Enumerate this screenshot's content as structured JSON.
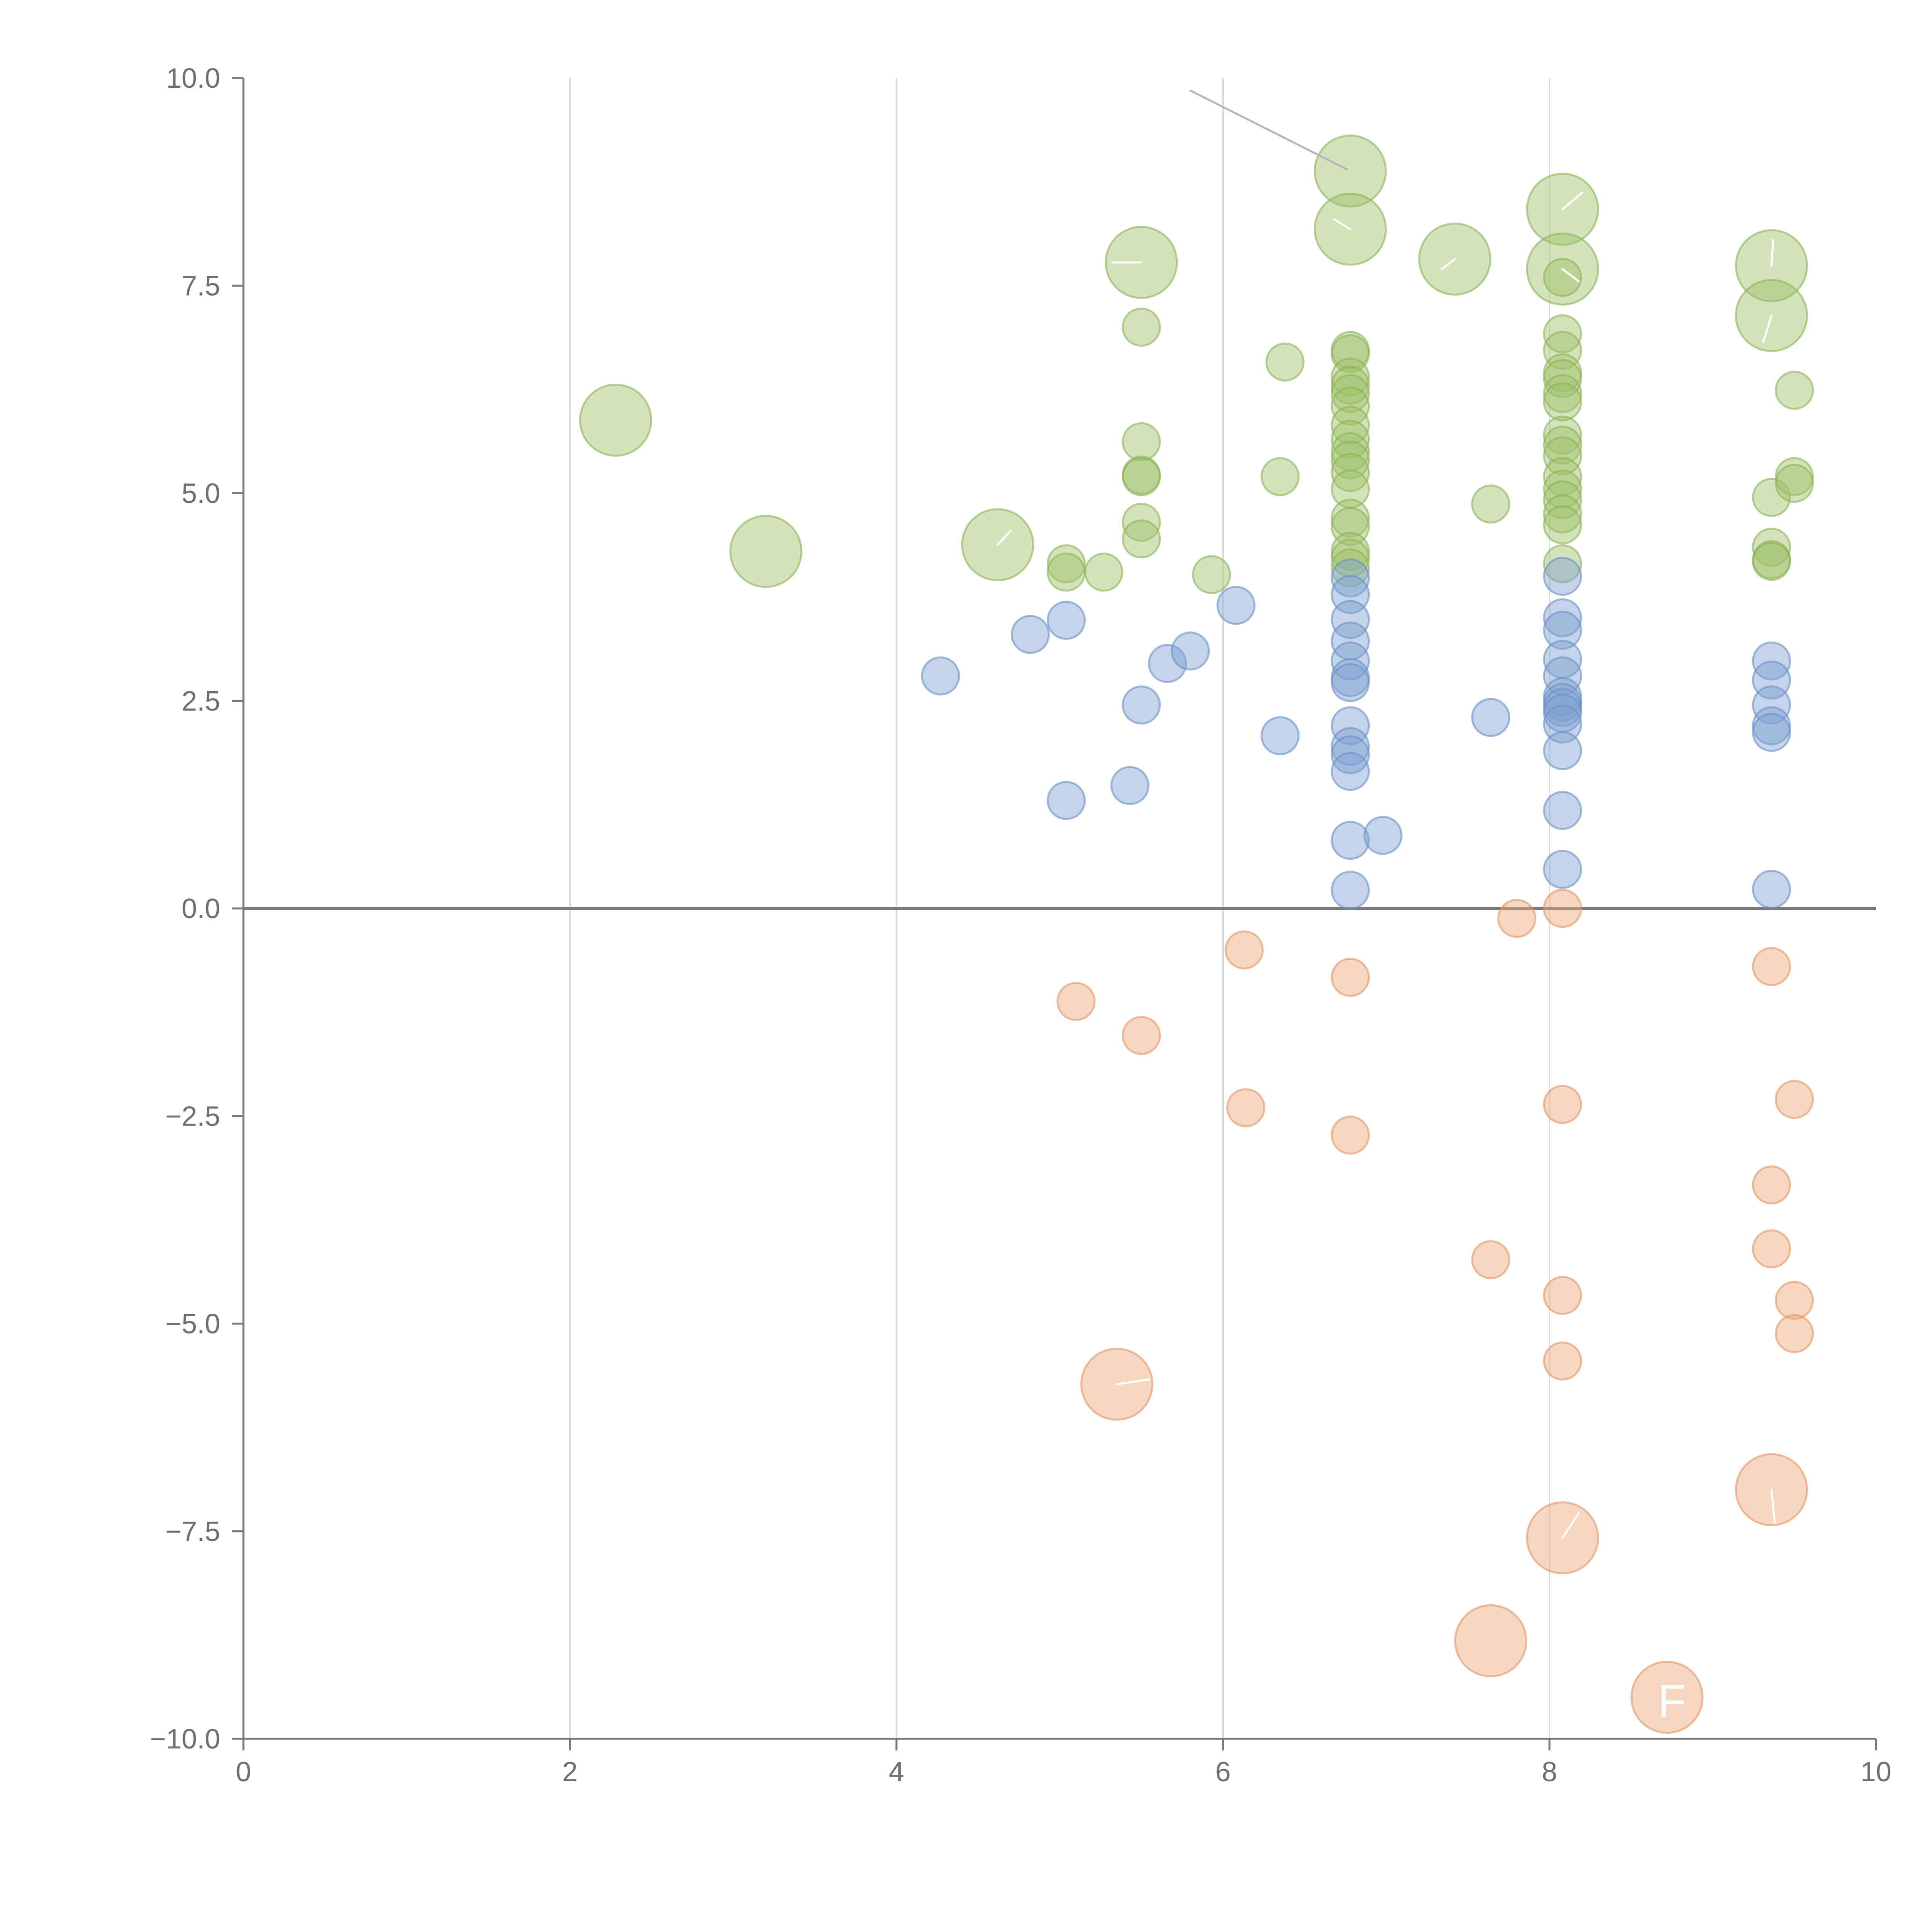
{
  "chart_data": {
    "type": "scatter",
    "title": "",
    "xlabel": "",
    "ylabel": "",
    "xlim": [
      0,
      10
    ],
    "ylim": [
      -10,
      10
    ],
    "x_ticks": [
      0,
      2,
      4,
      6,
      8,
      10
    ],
    "x_tick_labels": [
      "0",
      "2",
      "4",
      "6",
      "8",
      "10"
    ],
    "y_ticks": [
      10,
      7.5,
      5,
      2.5,
      0,
      -2.5,
      -5,
      -7.5,
      -10
    ],
    "y_tick_labels": [
      "10.0",
      "7.5",
      "5.0",
      "2.5",
      "0.0",
      "−2.5",
      "−5.0",
      "−7.5",
      "−10.0"
    ],
    "vertical_gridlines": [
      2,
      4,
      6,
      8
    ],
    "zero_line": 0,
    "series": [
      {
        "name": "green",
        "color": "#9dc068",
        "stroke": "#8bb355",
        "points": [
          [
            2.28,
            5.88,
            2
          ],
          [
            3.2,
            4.3,
            2
          ],
          [
            4.62,
            4.38,
            2
          ],
          [
            5.04,
            4.15,
            1
          ],
          [
            5.04,
            4.05,
            1
          ],
          [
            5.27,
            4.05,
            1
          ],
          [
            5.5,
            7.78,
            2
          ],
          [
            5.5,
            7.0,
            1
          ],
          [
            5.5,
            5.62,
            1
          ],
          [
            5.5,
            5.22,
            1
          ],
          [
            5.5,
            5.2,
            1
          ],
          [
            5.5,
            4.65,
            1
          ],
          [
            5.5,
            4.45,
            1
          ],
          [
            5.93,
            4.02,
            1
          ],
          [
            6.35,
            5.2,
            1
          ],
          [
            6.38,
            6.58,
            1
          ],
          [
            6.78,
            8.88,
            2
          ],
          [
            6.78,
            8.18,
            2
          ],
          [
            6.78,
            6.72,
            1
          ],
          [
            6.78,
            6.68,
            1
          ],
          [
            6.78,
            6.4,
            1
          ],
          [
            6.78,
            6.3,
            1
          ],
          [
            6.78,
            6.2,
            1
          ],
          [
            6.78,
            6.05,
            1
          ],
          [
            6.78,
            5.82,
            1
          ],
          [
            6.78,
            5.65,
            1
          ],
          [
            6.78,
            5.5,
            1
          ],
          [
            6.78,
            5.4,
            1
          ],
          [
            6.78,
            5.25,
            1
          ],
          [
            6.78,
            5.05,
            1
          ],
          [
            6.78,
            4.7,
            1
          ],
          [
            6.78,
            4.6,
            1
          ],
          [
            6.78,
            4.3,
            1
          ],
          [
            6.78,
            4.22,
            1
          ],
          [
            6.78,
            4.1,
            1
          ],
          [
            7.42,
            7.82,
            2
          ],
          [
            7.64,
            4.87,
            1
          ],
          [
            8.08,
            8.42,
            2
          ],
          [
            8.08,
            7.7,
            2
          ],
          [
            8.08,
            7.6,
            1
          ],
          [
            8.08,
            6.92,
            1
          ],
          [
            8.08,
            6.72,
            1
          ],
          [
            8.08,
            6.45,
            1
          ],
          [
            8.08,
            6.38,
            1
          ],
          [
            8.08,
            6.2,
            1
          ],
          [
            8.08,
            6.1,
            1
          ],
          [
            8.08,
            5.7,
            1
          ],
          [
            8.08,
            5.58,
            1
          ],
          [
            8.08,
            5.45,
            1
          ],
          [
            8.08,
            5.2,
            1
          ],
          [
            8.08,
            5.05,
            1
          ],
          [
            8.08,
            4.92,
            1
          ],
          [
            8.08,
            4.75,
            1
          ],
          [
            8.08,
            4.62,
            1
          ],
          [
            8.08,
            4.15,
            1
          ],
          [
            9.36,
            7.74,
            2
          ],
          [
            9.36,
            7.14,
            2
          ],
          [
            9.36,
            4.95,
            1
          ],
          [
            9.36,
            4.35,
            1
          ],
          [
            9.36,
            4.2,
            1
          ],
          [
            9.36,
            4.18,
            1
          ],
          [
            9.5,
            6.24,
            1
          ],
          [
            9.5,
            5.2,
            1
          ],
          [
            9.5,
            5.12,
            1
          ]
        ]
      },
      {
        "name": "blue",
        "color": "#7d9fd1",
        "stroke": "#6b8fc7",
        "points": [
          [
            4.27,
            2.8,
            1
          ],
          [
            4.82,
            3.3,
            1
          ],
          [
            5.04,
            3.47,
            1
          ],
          [
            5.04,
            1.3,
            1
          ],
          [
            5.43,
            1.48,
            1
          ],
          [
            5.5,
            2.45,
            1
          ],
          [
            5.66,
            2.95,
            1
          ],
          [
            5.8,
            3.1,
            1
          ],
          [
            6.08,
            3.65,
            1
          ],
          [
            6.35,
            2.08,
            1
          ],
          [
            6.78,
            3.98,
            1
          ],
          [
            6.78,
            3.78,
            1
          ],
          [
            6.78,
            3.48,
            1
          ],
          [
            6.78,
            3.22,
            1
          ],
          [
            6.78,
            2.98,
            1
          ],
          [
            6.78,
            2.78,
            1
          ],
          [
            6.78,
            2.72,
            1
          ],
          [
            6.78,
            2.2,
            1
          ],
          [
            6.78,
            1.95,
            1
          ],
          [
            6.78,
            1.85,
            1
          ],
          [
            6.78,
            1.65,
            1
          ],
          [
            6.78,
            0.82,
            1
          ],
          [
            6.78,
            0.22,
            1
          ],
          [
            6.98,
            0.88,
            1
          ],
          [
            7.64,
            2.3,
            1
          ],
          [
            8.08,
            4.0,
            1
          ],
          [
            8.08,
            3.5,
            1
          ],
          [
            8.08,
            3.35,
            1
          ],
          [
            8.08,
            3.0,
            1
          ],
          [
            8.08,
            2.8,
            1
          ],
          [
            8.08,
            2.55,
            1
          ],
          [
            8.08,
            2.48,
            1
          ],
          [
            8.08,
            2.42,
            1
          ],
          [
            8.08,
            2.35,
            1
          ],
          [
            8.08,
            2.22,
            1
          ],
          [
            8.08,
            1.9,
            1
          ],
          [
            8.08,
            1.18,
            1
          ],
          [
            8.08,
            0.47,
            1
          ],
          [
            9.36,
            2.98,
            1
          ],
          [
            9.36,
            2.75,
            1
          ],
          [
            9.36,
            2.45,
            1
          ],
          [
            9.36,
            2.2,
            1
          ],
          [
            9.36,
            2.12,
            1
          ],
          [
            9.36,
            0.23,
            1
          ]
        ]
      },
      {
        "name": "orange",
        "color": "#eba878",
        "stroke": "#e39562",
        "points": [
          [
            5.1,
            -1.12,
            1
          ],
          [
            5.5,
            -1.53,
            1
          ],
          [
            5.35,
            -5.73,
            2
          ],
          [
            6.13,
            -0.5,
            1
          ],
          [
            6.14,
            -2.4,
            1
          ],
          [
            6.78,
            -0.83,
            1
          ],
          [
            6.78,
            -2.73,
            1
          ],
          [
            7.64,
            -4.23,
            1
          ],
          [
            7.64,
            -8.82,
            2
          ],
          [
            7.8,
            -0.12,
            1
          ],
          [
            8.08,
            0.0,
            1
          ],
          [
            8.08,
            -2.36,
            1
          ],
          [
            8.08,
            -4.66,
            1
          ],
          [
            8.08,
            -5.45,
            1
          ],
          [
            8.08,
            -7.58,
            2
          ],
          [
            8.72,
            -9.5,
            2
          ],
          [
            9.36,
            -0.7,
            1
          ],
          [
            9.36,
            -3.33,
            1
          ],
          [
            9.36,
            -4.1,
            1
          ],
          [
            9.36,
            -7.0,
            2
          ],
          [
            9.5,
            -2.3,
            1
          ],
          [
            9.5,
            -4.72,
            1
          ],
          [
            9.5,
            -5.12,
            1
          ]
        ]
      }
    ],
    "annotations": [
      {
        "text": "F",
        "x": 8.75,
        "y": -9.55
      }
    ],
    "leader_lines": [
      {
        "from": [
          5.8,
          9.85
        ],
        "to": [
          6.76,
          8.9
        ],
        "color": "#b5b5b5"
      },
      {
        "from": [
          6.78,
          8.18
        ],
        "to": [
          6.68,
          8.3
        ],
        "color": "#ffffff"
      },
      {
        "from": [
          5.5,
          7.78
        ],
        "to": [
          5.32,
          7.78
        ],
        "color": "#ffffff"
      },
      {
        "from": [
          7.42,
          7.82
        ],
        "to": [
          7.34,
          7.7
        ],
        "color": "#ffffff"
      },
      {
        "from": [
          8.08,
          8.42
        ],
        "to": [
          8.2,
          8.62
        ],
        "color": "#ffffff"
      },
      {
        "from": [
          8.08,
          7.7
        ],
        "to": [
          8.18,
          7.55
        ],
        "color": "#ffffff"
      },
      {
        "from": [
          9.36,
          7.74
        ],
        "to": [
          9.37,
          8.05
        ],
        "color": "#ffffff"
      },
      {
        "from": [
          9.36,
          7.14
        ],
        "to": [
          9.31,
          6.82
        ],
        "color": "#ffffff"
      },
      {
        "from": [
          4.62,
          4.38
        ],
        "to": [
          4.7,
          4.55
        ],
        "color": "#ffffff"
      },
      {
        "from": [
          5.35,
          -5.73
        ],
        "to": [
          5.55,
          -5.67
        ],
        "color": "#ffffff"
      },
      {
        "from": [
          8.08,
          -7.58
        ],
        "to": [
          8.18,
          -7.28
        ],
        "color": "#ffffff"
      },
      {
        "from": [
          9.36,
          -7.0
        ],
        "to": [
          9.38,
          -7.4
        ],
        "color": "#ffffff"
      }
    ]
  }
}
